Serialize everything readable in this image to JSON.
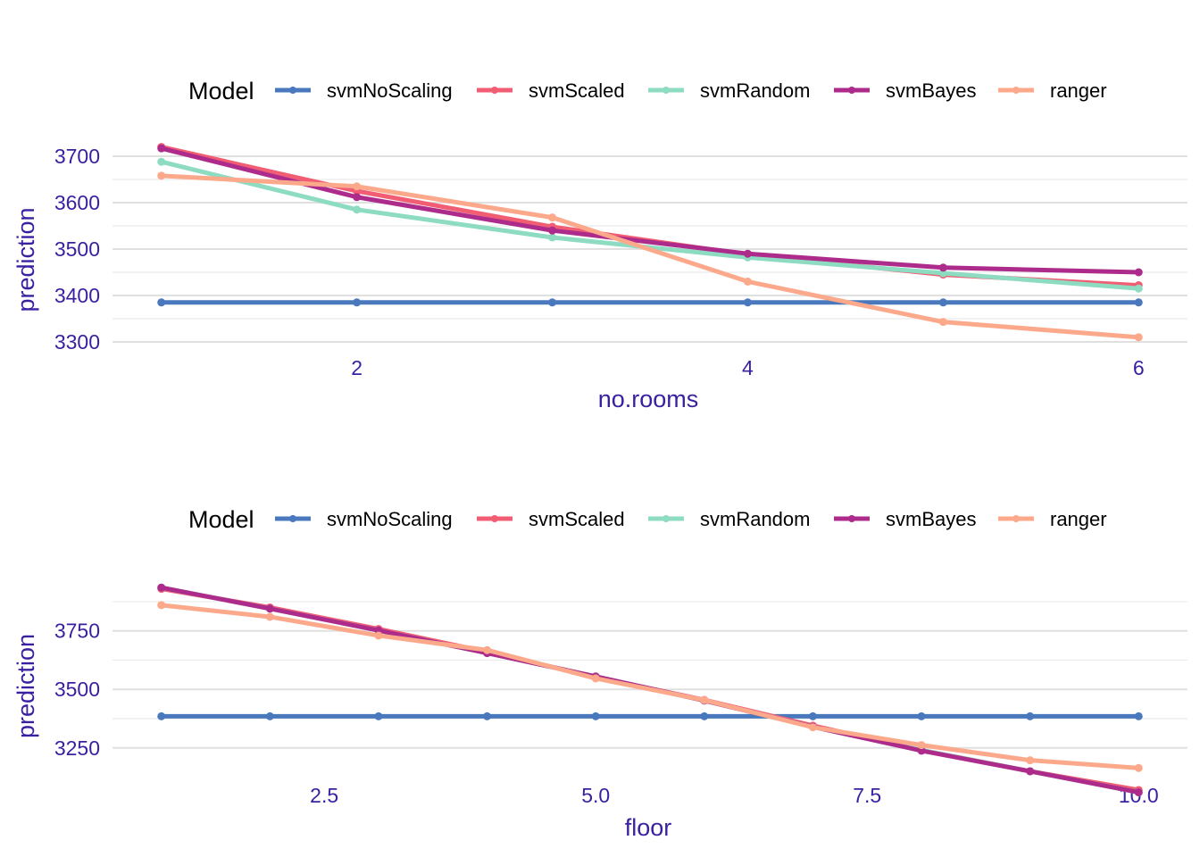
{
  "chart_data": [
    {
      "type": "line",
      "legend_title": "Model",
      "legend_position": "top",
      "xlabel": "no.rooms",
      "ylabel": "prediction",
      "xlim": [
        0.75,
        6.25
      ],
      "ylim": [
        3275,
        3725
      ],
      "xticks": [
        2,
        4,
        6
      ],
      "xtick_labels": [
        "2",
        "4",
        "6"
      ],
      "yticks": [
        3300,
        3400,
        3500,
        3600,
        3700
      ],
      "ytick_labels": [
        "3300",
        "3400",
        "3500",
        "3600",
        "3700"
      ],
      "x": [
        1,
        2,
        3,
        4,
        5,
        6
      ],
      "series": [
        {
          "name": "svmNoScaling",
          "color": "#4a78bd",
          "values": [
            3385,
            3385,
            3385,
            3385,
            3385,
            3385
          ]
        },
        {
          "name": "svmScaled",
          "color": "#f15d72",
          "values": [
            3720,
            3625,
            3548,
            3488,
            3445,
            3422
          ]
        },
        {
          "name": "svmRandom",
          "color": "#8ddbc1",
          "values": [
            3688,
            3585,
            3525,
            3482,
            3448,
            3415
          ]
        },
        {
          "name": "svmBayes",
          "color": "#ad2b8b",
          "values": [
            3717,
            3612,
            3540,
            3490,
            3460,
            3450
          ]
        },
        {
          "name": "ranger",
          "color": "#fca98b",
          "values": [
            3658,
            3635,
            3568,
            3430,
            3343,
            3310
          ]
        }
      ]
    },
    {
      "type": "line",
      "legend_title": "Model",
      "legend_position": "top",
      "xlabel": "floor",
      "ylabel": "prediction",
      "xlim": [
        0.55,
        10.45
      ],
      "ylim": [
        3127,
        3993
      ],
      "xticks": [
        2.5,
        5.0,
        7.5,
        10.0
      ],
      "xtick_labels": [
        "2.5",
        "5.0",
        "7.5",
        "10.0"
      ],
      "yticks": [
        3250,
        3500,
        3750
      ],
      "ytick_labels": [
        "3250",
        "3500",
        "3750"
      ],
      "x": [
        1,
        2,
        3,
        4,
        5,
        6,
        7,
        8,
        9,
        10
      ],
      "series": [
        {
          "name": "svmNoScaling",
          "color": "#4a78bd",
          "values": [
            3385,
            3385,
            3385,
            3385,
            3385,
            3385,
            3385,
            3385,
            3385,
            3385
          ]
        },
        {
          "name": "svmScaled",
          "color": "#f15d72",
          "values": [
            3930,
            3850,
            3758,
            3660,
            3553,
            3455,
            3345,
            3240,
            3150,
            3070
          ]
        },
        {
          "name": "svmRandom",
          "color": "#8ddbc1",
          "values": [
            3935,
            3845,
            3752,
            3655,
            3555,
            3452,
            3340,
            3240,
            3150,
            3060
          ]
        },
        {
          "name": "svmBayes",
          "color": "#ad2b8b",
          "values": [
            3935,
            3845,
            3752,
            3655,
            3555,
            3452,
            3340,
            3238,
            3150,
            3060
          ]
        },
        {
          "name": "ranger",
          "color": "#fca98b",
          "values": [
            3860,
            3810,
            3730,
            3668,
            3547,
            3454,
            3338,
            3262,
            3197,
            3164
          ]
        }
      ]
    }
  ]
}
